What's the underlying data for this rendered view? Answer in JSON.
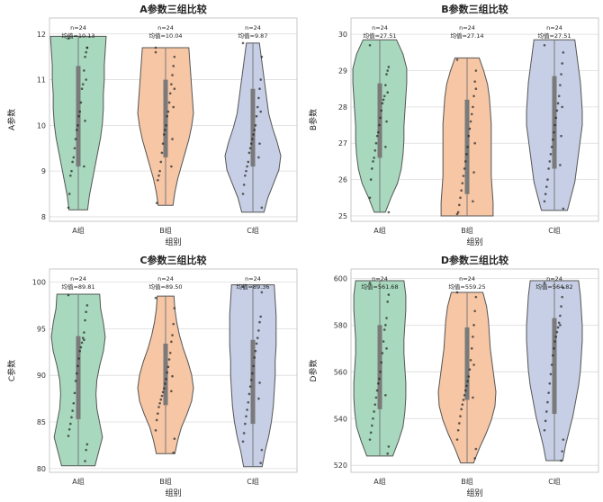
{
  "colors": {
    "A组": "#a8d8bd",
    "B组": "#f6c6a5",
    "C组": "#c6cfe5"
  },
  "chart_data": [
    {
      "type": "violin",
      "title": "A参数三组比较",
      "xlabel": "组别",
      "ylabel": "A参数",
      "ylim": [
        7.9,
        12.35
      ],
      "yticks": [
        8,
        9,
        10,
        11,
        12
      ],
      "grid": true,
      "categories": [
        "A组",
        "B组",
        "C组"
      ],
      "annotations": [
        {
          "n": "n=24",
          "mean": "均值=10.13"
        },
        {
          "n": "n=24",
          "mean": "均值=10.04"
        },
        {
          "n": "n=24",
          "mean": "均值=9.87"
        }
      ],
      "stats": [
        {
          "min": 8.15,
          "q1": 9.1,
          "median": 10.2,
          "q3": 11.3,
          "max": 11.95
        },
        {
          "min": 8.25,
          "q1": 9.3,
          "median": 10.05,
          "q3": 11.0,
          "max": 11.7
        },
        {
          "min": 8.1,
          "q1": 9.1,
          "median": 9.7,
          "q3": 10.8,
          "max": 11.8
        }
      ],
      "density": [
        [
          0.1,
          0.12,
          0.15,
          0.18,
          0.21,
          0.24,
          0.26,
          0.27,
          0.27,
          0.28,
          0.28,
          0.29,
          0.3
        ],
        [
          0.08,
          0.1,
          0.13,
          0.17,
          0.21,
          0.25,
          0.28,
          0.3,
          0.29,
          0.28,
          0.27,
          0.26,
          0.25
        ],
        [
          0.12,
          0.16,
          0.22,
          0.28,
          0.3,
          0.26,
          0.21,
          0.17,
          0.15,
          0.13,
          0.11,
          0.09,
          0.07
        ]
      ],
      "points": [
        [
          11.9,
          11.7,
          11.6,
          11.5,
          11.2,
          10.9,
          10.8,
          10.5,
          10.3,
          10.2,
          10.0,
          9.9,
          9.7,
          9.5,
          9.3,
          9.2,
          9.0,
          8.9,
          8.5,
          8.2,
          11.7,
          11.0,
          10.1,
          9.1
        ],
        [
          11.7,
          11.5,
          11.3,
          11.1,
          10.9,
          10.7,
          10.5,
          10.3,
          10.2,
          10.0,
          9.9,
          9.8,
          9.6,
          9.4,
          9.2,
          9.0,
          8.9,
          8.8,
          8.3,
          11.6,
          10.8,
          10.4,
          9.7,
          9.1
        ],
        [
          11.8,
          11.5,
          11.0,
          10.8,
          10.6,
          10.4,
          10.2,
          10.0,
          9.9,
          9.8,
          9.7,
          9.6,
          9.5,
          9.4,
          9.2,
          9.1,
          9.0,
          8.9,
          8.7,
          8.5,
          8.2,
          10.3,
          9.6,
          9.3
        ]
      ]
    },
    {
      "type": "violin",
      "title": "B参数三组比较",
      "xlabel": "组别",
      "ylabel": "B参数",
      "ylim": [
        24.85,
        30.45
      ],
      "yticks": [
        25,
        26,
        27,
        28,
        29,
        30
      ],
      "grid": true,
      "categories": [
        "A组",
        "B组",
        "C组"
      ],
      "annotations": [
        {
          "n": "n=24",
          "mean": "均值=27.51"
        },
        {
          "n": "n=24",
          "mean": "均值=27.14"
        },
        {
          "n": "n=24",
          "mean": "均值=27.51"
        }
      ],
      "stats": [
        {
          "min": 25.1,
          "q1": 26.6,
          "median": 27.6,
          "q3": 28.65,
          "max": 29.85
        },
        {
          "min": 25.0,
          "q1": 25.6,
          "median": 26.9,
          "q3": 28.2,
          "max": 29.35
        },
        {
          "min": 25.15,
          "q1": 26.3,
          "median": 27.6,
          "q3": 28.85,
          "max": 29.85
        }
      ],
      "density": [
        [
          0.06,
          0.12,
          0.19,
          0.23,
          0.25,
          0.26,
          0.26,
          0.27,
          0.28,
          0.29,
          0.29,
          0.25,
          0.18
        ],
        [
          0.28,
          0.28,
          0.27,
          0.26,
          0.26,
          0.26,
          0.26,
          0.26,
          0.25,
          0.24,
          0.22,
          0.18,
          0.13
        ],
        [
          0.14,
          0.18,
          0.22,
          0.24,
          0.26,
          0.28,
          0.3,
          0.3,
          0.29,
          0.28,
          0.26,
          0.24,
          0.22
        ]
      ],
      "points": [
        [
          29.7,
          29.1,
          29.0,
          28.9,
          28.6,
          28.3,
          28.2,
          28.1,
          27.9,
          27.7,
          27.5,
          27.3,
          27.2,
          27.0,
          26.8,
          26.6,
          26.5,
          26.3,
          26.0,
          25.5,
          25.1,
          28.4,
          27.6,
          26.9
        ],
        [
          29.3,
          29.0,
          28.7,
          28.3,
          28.0,
          27.8,
          27.6,
          27.4,
          27.2,
          26.9,
          26.7,
          26.5,
          26.3,
          26.1,
          25.9,
          25.7,
          25.5,
          25.3,
          25.1,
          25.05,
          28.5,
          27.0,
          26.2,
          25.4
        ],
        [
          29.7,
          29.5,
          29.2,
          28.9,
          28.6,
          28.3,
          28.1,
          27.9,
          27.7,
          27.5,
          27.3,
          27.1,
          26.9,
          26.7,
          26.5,
          26.3,
          26.0,
          25.8,
          25.6,
          25.4,
          25.2,
          28.0,
          27.2,
          26.4
        ]
      ]
    },
    {
      "type": "violin",
      "title": "C参数三组比较",
      "xlabel": "组别",
      "ylabel": "C参数",
      "ylim": [
        79.6,
        101.4
      ],
      "yticks": [
        80,
        85,
        90,
        95,
        100
      ],
      "grid": true,
      "categories": [
        "A组",
        "B组",
        "C组"
      ],
      "annotations": [
        {
          "n": "n=24",
          "mean": "均值=89.81"
        },
        {
          "n": "n=24",
          "mean": "均值=89.50"
        },
        {
          "n": "n=24",
          "mean": "均值=89.36"
        }
      ],
      "stats": [
        {
          "min": 80.3,
          "q1": 85.3,
          "median": 91.0,
          "q3": 94.2,
          "max": 98.7
        },
        {
          "min": 81.6,
          "q1": 86.8,
          "median": 88.5,
          "q3": 93.4,
          "max": 98.5
        },
        {
          "min": 80.2,
          "q1": 84.8,
          "median": 89.0,
          "q3": 93.8,
          "max": 99.7
        }
      ],
      "density": [
        [
          0.18,
          0.22,
          0.26,
          0.23,
          0.2,
          0.19,
          0.2,
          0.23,
          0.27,
          0.29,
          0.27,
          0.24,
          0.23
        ],
        [
          0.1,
          0.13,
          0.17,
          0.23,
          0.28,
          0.3,
          0.28,
          0.24,
          0.19,
          0.15,
          0.12,
          0.1,
          0.09
        ],
        [
          0.1,
          0.13,
          0.17,
          0.2,
          0.22,
          0.23,
          0.24,
          0.24,
          0.25,
          0.25,
          0.25,
          0.24,
          0.23
        ]
      ],
      "points": [
        [
          98.6,
          97.5,
          96.8,
          95.9,
          94.6,
          94.0,
          93.5,
          93.0,
          92.6,
          91.8,
          91.0,
          90.2,
          89.4,
          88.1,
          87.0,
          86.2,
          85.5,
          84.8,
          84.2,
          83.5,
          82.6,
          82.0,
          80.8,
          93.8
        ],
        [
          98.3,
          97.2,
          95.5,
          94.3,
          93.6,
          92.4,
          91.7,
          90.9,
          90.3,
          89.6,
          89.1,
          88.6,
          88.2,
          87.8,
          87.4,
          87.0,
          86.6,
          85.9,
          85.2,
          84.1,
          83.2,
          81.7,
          89.9,
          88.3
        ],
        [
          99.5,
          98.9,
          96.3,
          95.7,
          94.8,
          94.0,
          93.4,
          92.6,
          91.9,
          91.0,
          90.2,
          89.5,
          88.8,
          88.0,
          87.1,
          86.3,
          85.6,
          84.8,
          83.8,
          82.9,
          82.0,
          80.6,
          89.2,
          87.5
        ]
      ]
    },
    {
      "type": "violin",
      "title": "D参数三组比较",
      "xlabel": "组别",
      "ylabel": "D参数",
      "ylim": [
        517,
        604
      ],
      "yticks": [
        520,
        540,
        560,
        580,
        600
      ],
      "grid": true,
      "categories": [
        "A组",
        "B组",
        "C组"
      ],
      "annotations": [
        {
          "n": "n=24",
          "mean": "均值=561.68"
        },
        {
          "n": "n=24",
          "mean": "均值=559.25"
        },
        {
          "n": "n=24",
          "mean": "均值=564.82"
        }
      ],
      "stats": [
        {
          "min": 524,
          "q1": 544,
          "median": 557,
          "q3": 580,
          "max": 599
        },
        {
          "min": 521,
          "q1": 548,
          "median": 556,
          "q3": 579,
          "max": 594
        },
        {
          "min": 522,
          "q1": 542,
          "median": 572,
          "q3": 583,
          "max": 599
        }
      ],
      "density": [
        [
          0.14,
          0.2,
          0.25,
          0.27,
          0.28,
          0.28,
          0.27,
          0.26,
          0.26,
          0.27,
          0.28,
          0.28,
          0.26
        ],
        [
          0.07,
          0.13,
          0.2,
          0.26,
          0.3,
          0.31,
          0.29,
          0.27,
          0.25,
          0.24,
          0.23,
          0.21,
          0.17
        ],
        [
          0.09,
          0.12,
          0.16,
          0.2,
          0.23,
          0.26,
          0.28,
          0.29,
          0.3,
          0.3,
          0.29,
          0.28,
          0.26
        ]
      ],
      "points": [
        [
          598,
          593,
          590,
          583,
          580,
          578,
          573,
          568,
          564,
          560,
          557,
          555,
          552,
          549,
          546,
          543,
          540,
          537,
          534,
          531,
          528,
          525,
          570,
          550
        ],
        [
          594,
          592,
          586,
          580,
          575,
          570,
          565,
          561,
          558,
          556,
          554,
          552,
          550,
          548,
          546,
          544,
          541,
          538,
          535,
          531,
          527,
          523,
          563,
          549
        ],
        [
          598,
          596,
          592,
          588,
          584,
          581,
          579,
          577,
          575,
          573,
          570,
          567,
          563,
          559,
          555,
          551,
          547,
          543,
          539,
          535,
          531,
          526,
          522,
          580
        ]
      ]
    }
  ]
}
